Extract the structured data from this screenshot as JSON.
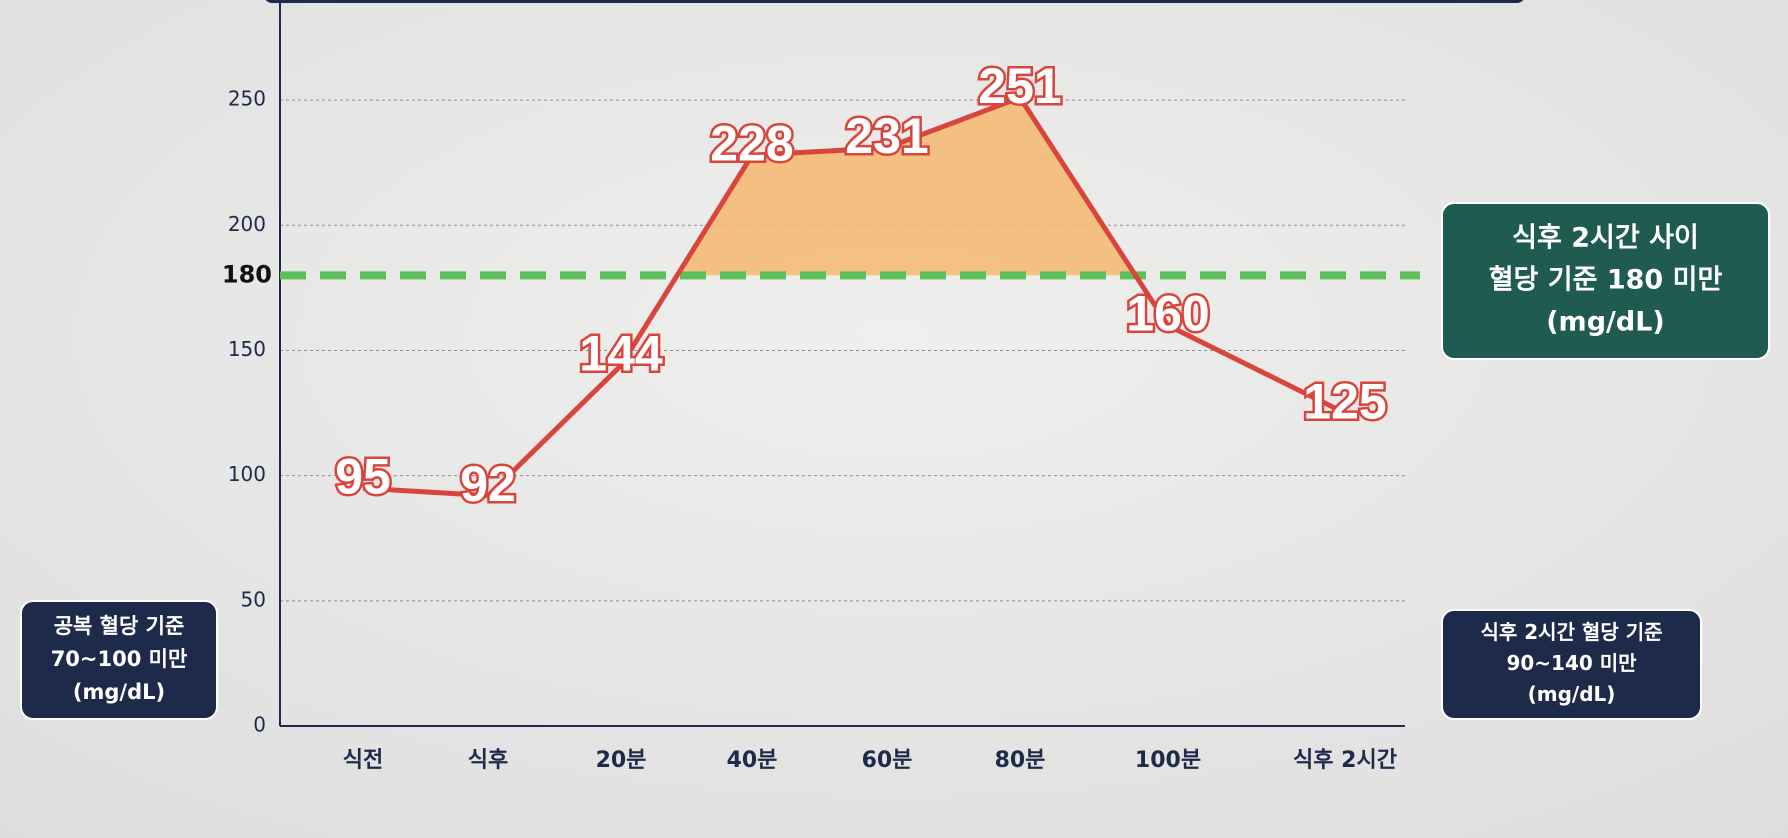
{
  "chart_data": {
    "type": "line",
    "categories": [
      "식전",
      "식후",
      "20분",
      "40분",
      "60분",
      "80분",
      "100분",
      "식후 2시간"
    ],
    "series": [
      {
        "values": [
          95,
          92,
          144,
          228,
          231,
          251,
          160,
          125
        ],
        "color": "#d8453c"
      }
    ],
    "ylim": [
      0,
      290
    ],
    "yticks": [
      0,
      50,
      100,
      150,
      200,
      250
    ],
    "grid": true,
    "threshold": 180,
    "threshold_color": "#5cbf5a",
    "area_color": "#f4b870",
    "annotations": [
      {
        "lines": [
          "식후 2시간 사이",
          "혈당 기준 180 미만",
          "(mg/dL)"
        ],
        "color": "#1f5b50"
      },
      {
        "lines": [
          "공복 혈당 기준",
          "70~100 미만",
          "(mg/dL)"
        ],
        "color": "#1d2a4a"
      },
      {
        "lines": [
          "식후 2시간 혈당 기준",
          "90~140 미만",
          "(mg/dL)"
        ],
        "color": "#1d2a4a"
      }
    ]
  }
}
